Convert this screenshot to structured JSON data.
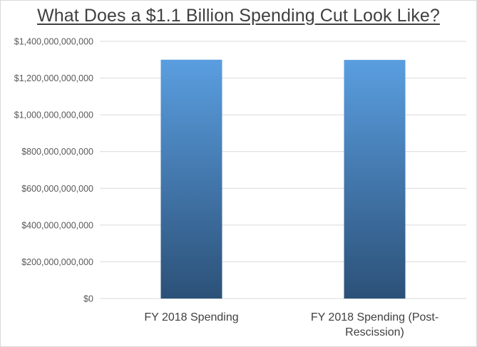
{
  "chart_data": {
    "type": "bar",
    "title": "What Does a $1.1 Billion Spending Cut Look Like?",
    "categories": [
      [
        "FY 2018 Spending"
      ],
      [
        "FY 2018 Spending (Post-",
        "Rescission)"
      ]
    ],
    "values": [
      1300000000000,
      1298900000000
    ],
    "ylim": [
      0,
      1400000000000
    ],
    "y_ticks": [
      "$0",
      "$200,000,000,000",
      "$400,000,000,000",
      "$600,000,000,000",
      "$800,000,000,000",
      "$1,000,000,000,000",
      "$1,200,000,000,000",
      "$1,400,000,000,000"
    ],
    "grid": true,
    "legend": "none",
    "colors": {
      "bar_top": "#5a9ee0",
      "bar_bottom": "#2c5178",
      "grid": "#d9d9d9"
    }
  }
}
